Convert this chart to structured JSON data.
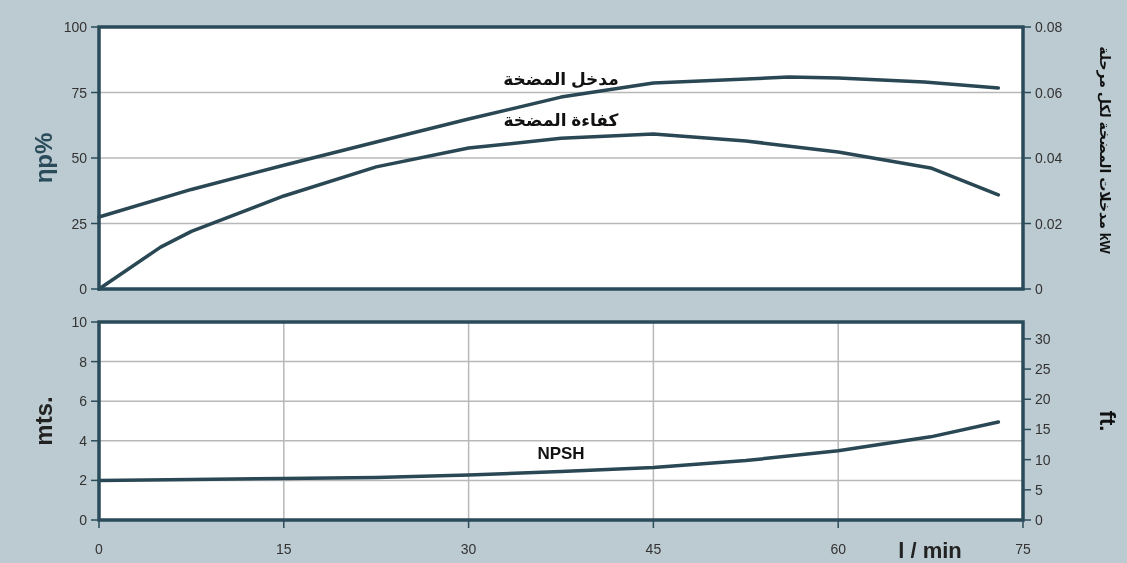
{
  "chart_data": [
    {
      "type": "line",
      "ylabel": "ηp%",
      "y2label": "مدخلات المضخة لكل مرحلة kW",
      "xlim": [
        0,
        75
      ],
      "ylim": [
        0,
        100
      ],
      "yticks": [
        0,
        25,
        50,
        75,
        100
      ],
      "y2lim": [
        0,
        0.08
      ],
      "y2ticks": [
        0,
        0.02,
        0.04,
        0.06,
        0.08
      ],
      "tick_labels": "y",
      "grid": true,
      "series": [
        {
          "name": "مدخل المضخة",
          "color": "#2a4754",
          "axis": "y2",
          "x": [
            0,
            7.5,
            15,
            22.5,
            30,
            37.5,
            45,
            56,
            60,
            67,
            73
          ],
          "values": [
            0.022,
            0.0304,
            0.0378,
            0.0449,
            0.0519,
            0.0586,
            0.0629,
            0.0647,
            0.0644,
            0.0632,
            0.0614
          ]
        },
        {
          "name": "كفاءة المضخة",
          "color": "#2a4754",
          "x": [
            0,
            5,
            7.5,
            15,
            22.5,
            30,
            37.5,
            45,
            52.5,
            60,
            67.5,
            73
          ],
          "values": [
            0,
            16,
            22,
            35.5,
            46.6,
            53.8,
            57.5,
            59.2,
            56.5,
            52.3,
            46.2,
            35.9
          ]
        }
      ]
    },
    {
      "type": "line",
      "xlabel": "l / min",
      "ylabel": "mts.",
      "y2label": "ft.",
      "xlim": [
        0,
        75
      ],
      "xticks": [
        0,
        15,
        30,
        45,
        60,
        75
      ],
      "ylim": [
        0,
        10
      ],
      "yticks": [
        0,
        2,
        4,
        6,
        8,
        10
      ],
      "y2lim": [
        0,
        32.8
      ],
      "y2ticks": [
        0,
        5,
        10,
        15,
        20,
        25,
        30
      ],
      "grid": true,
      "series": [
        {
          "name": "NPSH",
          "color": "#2a4754",
          "x": [
            0,
            7.5,
            15,
            22.5,
            30,
            37.5,
            45,
            52.5,
            60,
            67.5,
            73
          ],
          "values": [
            2.0,
            2.05,
            2.1,
            2.15,
            2.27,
            2.45,
            2.65,
            3.0,
            3.5,
            4.2,
            4.95
          ]
        }
      ]
    }
  ]
}
